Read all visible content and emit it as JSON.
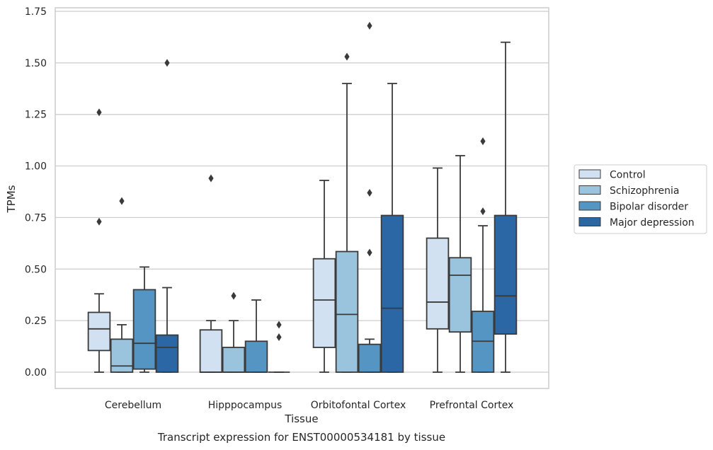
{
  "chart_data": {
    "type": "box",
    "title": "",
    "caption": "Transcript expression for ENST00000534181 by tissue",
    "xlabel": "Tissue",
    "ylabel": "TPMs",
    "ylim": [
      -0.08,
      1.76
    ],
    "yticks": [
      0,
      0.25,
      0.5,
      0.75,
      1.0,
      1.25,
      1.5,
      1.75
    ],
    "ytick_labels": [
      "0.00",
      "0.25",
      "0.50",
      "0.75",
      "1.00",
      "1.25",
      "1.50",
      "1.75"
    ],
    "grid": "horizontal",
    "legend_position": "right",
    "categories": [
      "Cerebellum",
      "Hipppocampus",
      "Orbitofontal Cortex",
      "Prefrontal Cortex"
    ],
    "series": [
      {
        "name": "Control",
        "color": "#d1e1f2",
        "boxes": [
          {
            "min": 0.0,
            "q1": 0.105,
            "median": 0.21,
            "q3": 0.29,
            "max": 0.38,
            "outliers": [
              0.73,
              1.26
            ]
          },
          {
            "min": 0.0,
            "q1": 0.0,
            "median": 0.0,
            "q3": 0.205,
            "max": 0.25,
            "outliers": [
              0.94
            ]
          },
          {
            "min": 0.0,
            "q1": 0.12,
            "median": 0.35,
            "q3": 0.55,
            "max": 0.93,
            "outliers": []
          },
          {
            "min": 0.0,
            "q1": 0.21,
            "median": 0.34,
            "q3": 0.65,
            "max": 0.99,
            "outliers": []
          }
        ]
      },
      {
        "name": "Schizophrenia",
        "color": "#9ac4dd",
        "boxes": [
          {
            "min": 0.0,
            "q1": 0.0,
            "median": 0.03,
            "q3": 0.16,
            "max": 0.23,
            "outliers": [
              0.83
            ]
          },
          {
            "min": 0.0,
            "q1": 0.0,
            "median": 0.0,
            "q3": 0.12,
            "max": 0.25,
            "outliers": [
              0.37
            ]
          },
          {
            "min": 0.0,
            "q1": 0.0,
            "median": 0.28,
            "q3": 0.585,
            "max": 1.4,
            "outliers": [
              1.53
            ]
          },
          {
            "min": 0.0,
            "q1": 0.195,
            "median": 0.47,
            "q3": 0.555,
            "max": 1.05,
            "outliers": []
          }
        ]
      },
      {
        "name": "Bipolar disorder",
        "color": "#5595c3",
        "boxes": [
          {
            "min": 0.0,
            "q1": 0.015,
            "median": 0.14,
            "q3": 0.4,
            "max": 0.51,
            "outliers": []
          },
          {
            "min": 0.0,
            "q1": 0.0,
            "median": 0.0,
            "q3": 0.15,
            "max": 0.35,
            "outliers": []
          },
          {
            "min": 0.0,
            "q1": 0.0,
            "median": 0.0,
            "q3": 0.135,
            "max": 0.16,
            "outliers": [
              0.58,
              0.87,
              1.68
            ]
          },
          {
            "min": 0.0,
            "q1": 0.0,
            "median": 0.15,
            "q3": 0.295,
            "max": 0.71,
            "outliers": [
              0.78,
              1.12
            ]
          }
        ]
      },
      {
        "name": "Major depression",
        "color": "#2a67a4",
        "boxes": [
          {
            "min": 0.0,
            "q1": 0.0,
            "median": 0.12,
            "q3": 0.18,
            "max": 0.41,
            "outliers": [
              1.5
            ]
          },
          {
            "min": 0.0,
            "q1": 0.0,
            "median": 0.0,
            "q3": 0.0,
            "max": 0.0,
            "outliers": [
              0.17,
              0.23
            ]
          },
          {
            "min": 0.0,
            "q1": 0.0,
            "median": 0.31,
            "q3": 0.76,
            "max": 1.4,
            "outliers": []
          },
          {
            "min": 0.0,
            "q1": 0.185,
            "median": 0.37,
            "q3": 0.76,
            "max": 1.6,
            "outliers": []
          }
        ]
      }
    ]
  }
}
